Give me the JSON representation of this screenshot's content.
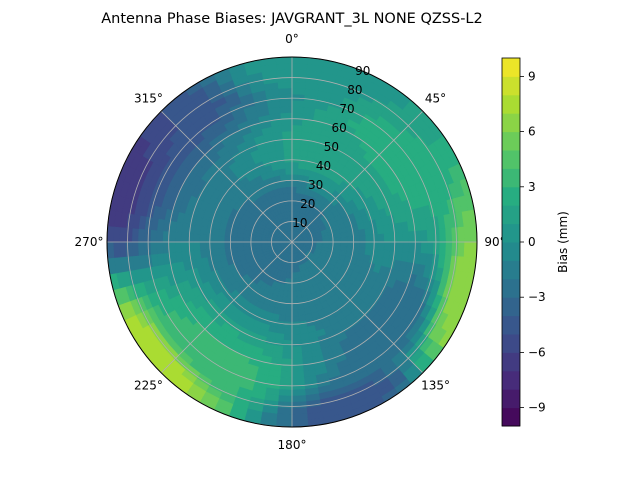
{
  "chart_data": {
    "type": "heatmap",
    "projection": "polar",
    "title": "Antenna Phase Biases: JAVGRANT_3L     NONE QZSS-L2",
    "theta_direction": "clockwise",
    "theta_zero": "top",
    "theta_ticks": [
      {
        "angle": 0,
        "label": "0°"
      },
      {
        "angle": 45,
        "label": "45°"
      },
      {
        "angle": 90,
        "label": "90°"
      },
      {
        "angle": 135,
        "label": "135°"
      },
      {
        "angle": 180,
        "label": "180°"
      },
      {
        "angle": 225,
        "label": "225°"
      },
      {
        "angle": 270,
        "label": "270°"
      },
      {
        "angle": 315,
        "label": "315°"
      }
    ],
    "radial_ticks": [
      "10",
      "20",
      "30",
      "40",
      "50",
      "60",
      "70",
      "80",
      "90"
    ],
    "radial_range": [
      0,
      90
    ],
    "grid": true,
    "colormap": "viridis",
    "colorbar": {
      "label": "Bias (mm)",
      "range": [
        -10,
        10
      ],
      "levels": 20,
      "ticks": [
        "−9",
        "−6",
        "−3",
        "0",
        "3",
        "6",
        "9"
      ]
    },
    "field_samples": [
      {
        "azimuth": 0,
        "zenith": 15,
        "bias": -2.5
      },
      {
        "azimuth": 90,
        "zenith": 15,
        "bias": -2.0
      },
      {
        "azimuth": 180,
        "zenith": 15,
        "bias": -2.0
      },
      {
        "azimuth": 270,
        "zenith": 15,
        "bias": -2.5
      },
      {
        "azimuth": 20,
        "zenith": 45,
        "bias": 1.5
      },
      {
        "azimuth": 50,
        "zenith": 65,
        "bias": 2.5
      },
      {
        "azimuth": 210,
        "zenith": 70,
        "bias": 3.5
      },
      {
        "azimuth": 290,
        "zenith": 85,
        "bias": -7.0
      },
      {
        "azimuth": 315,
        "zenith": 80,
        "bias": -5.0
      },
      {
        "azimuth": 160,
        "zenith": 85,
        "bias": -5.0
      },
      {
        "azimuth": 110,
        "zenith": 88,
        "bias": 7.0
      },
      {
        "azimuth": 230,
        "zenith": 88,
        "bias": 8.0
      },
      {
        "azimuth": 130,
        "zenith": 65,
        "bias": -3.0
      },
      {
        "azimuth": 0,
        "zenith": 85,
        "bias": 0.5
      }
    ]
  }
}
